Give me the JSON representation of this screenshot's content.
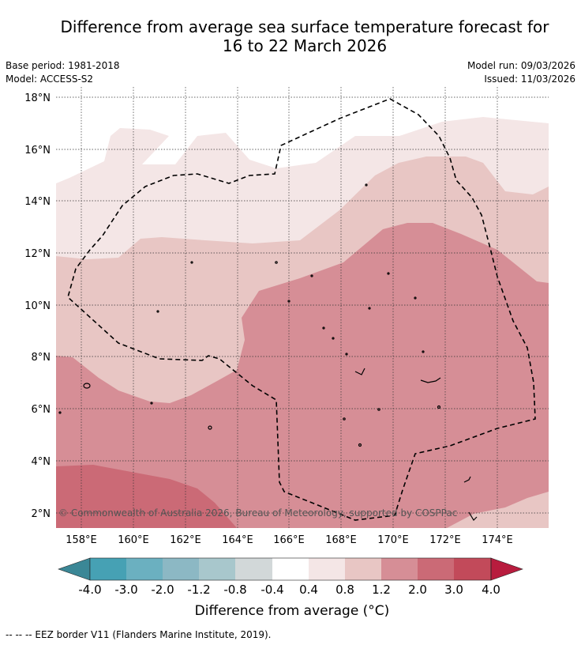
{
  "header": {
    "title_line1": "Difference from average sea surface temperature forecast for",
    "title_line2": "16 to 22 March 2026",
    "base_period": "Base period: 1981-2018",
    "model": "Model: ACCESS-S2",
    "model_run": "Model run: 09/03/2026",
    "issued": "Issued: 11/03/2026"
  },
  "map": {
    "copyright": "© Commonwealth of Australia 2026, Bureau of Meteorology, supported by COSPPac",
    "lat_labels": [
      "18°N",
      "16°N",
      "14°N",
      "12°N",
      "10°N",
      "8°N",
      "6°N",
      "4°N",
      "2°N"
    ],
    "lon_labels": [
      "158°E",
      "160°E",
      "162°E",
      "164°E",
      "166°E",
      "168°E",
      "170°E",
      "172°E",
      "174°E"
    ],
    "fill_colors": {
      "band_0_4_0_8": "#f4e6e6",
      "band_0_8_1_2": "#e8c6c4",
      "band_1_2_2_0": "#d68e96",
      "band_2_0_3_0": "#cb6a76",
      "outline": "#000000"
    }
  },
  "colorbar": {
    "title": "Difference from average (°C)",
    "tick_labels": [
      "-4.0",
      "-3.0",
      "-2.0",
      "-1.2",
      "-0.8",
      "-0.4",
      "0.4",
      "0.8",
      "1.2",
      "2.0",
      "3.0",
      "4.0"
    ],
    "colors": [
      "#3b8796",
      "#46a1b4",
      "#6bb0c0",
      "#8cb8c4",
      "#a8c7cc",
      "#d2d8d9",
      "#ffffff",
      "#f4e6e6",
      "#e8c6c4",
      "#d68e96",
      "#cb6a76",
      "#c24a5a",
      "#b81c3e"
    ]
  },
  "footer": {
    "legend_text": "--  --  -- EEZ border V11 (Flanders Marine Institute, 2019)."
  }
}
